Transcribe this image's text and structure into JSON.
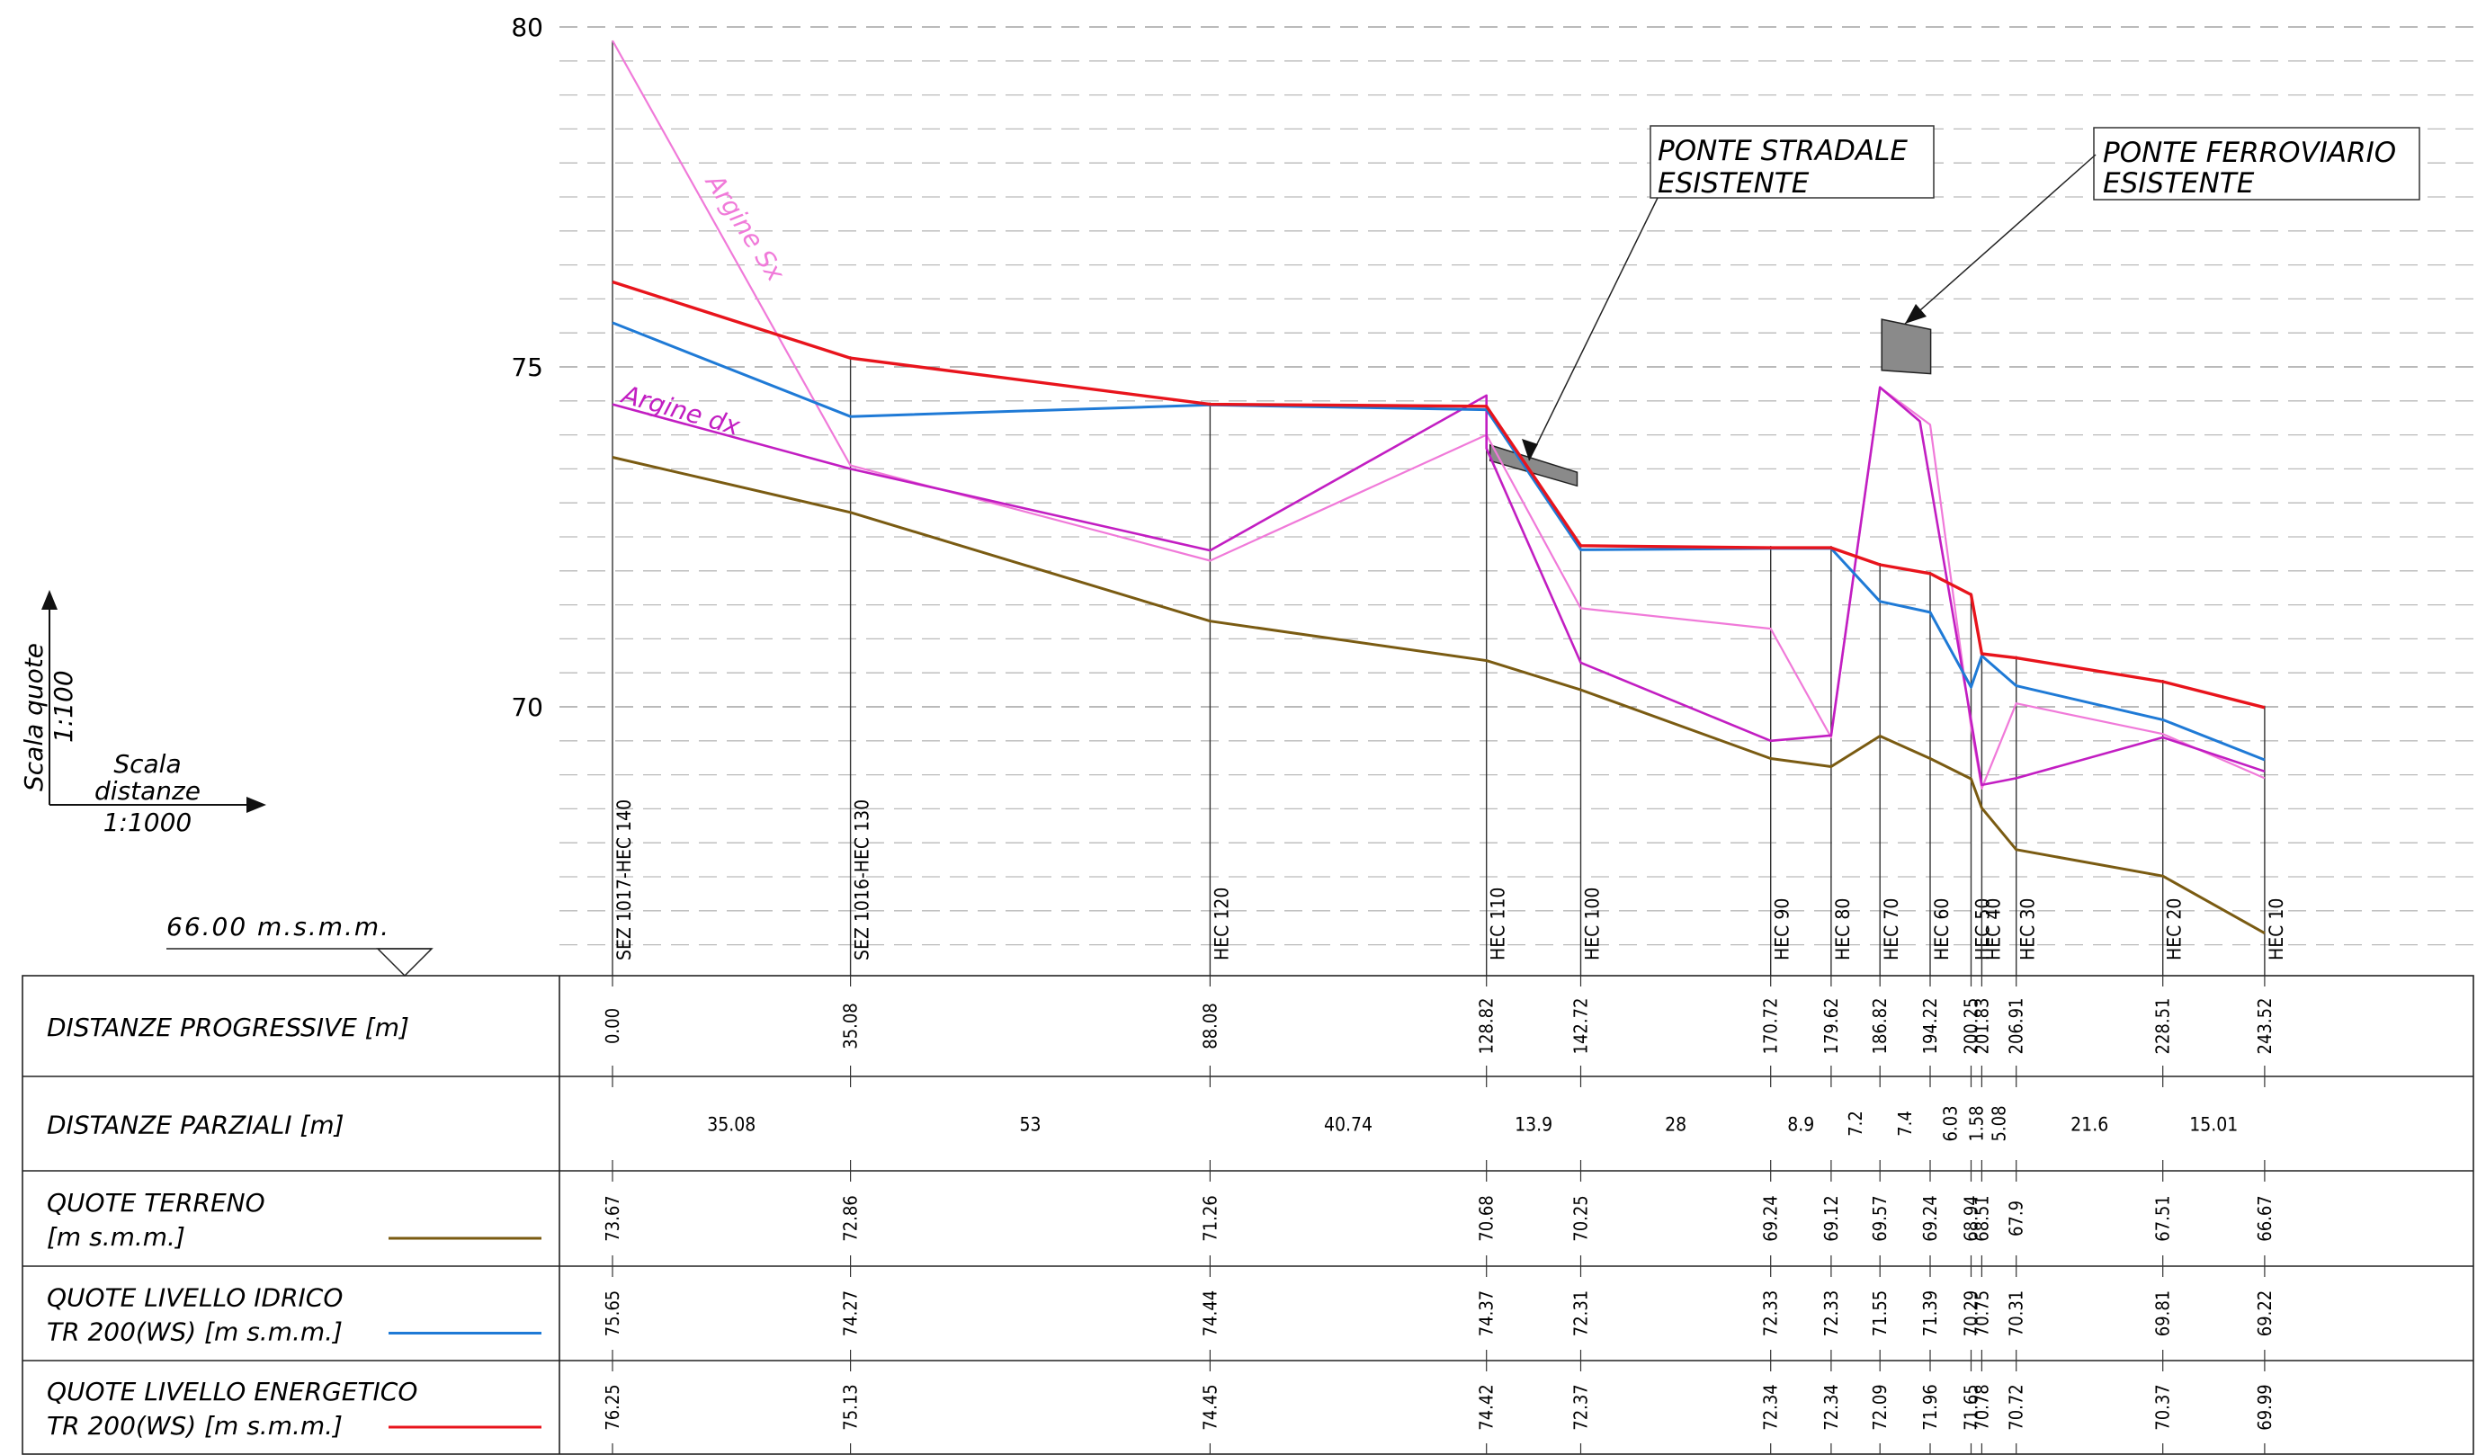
{
  "chart_data": {
    "type": "line",
    "title": "",
    "xlabel": "",
    "ylabel": "",
    "ylim": [
      66,
      80
    ],
    "yticks": [
      80,
      75,
      70
    ],
    "grid": true,
    "datum_label": "66.00 m.s.m.m.",
    "scale": {
      "vertical_label": "Scala quote",
      "vertical_value": "1:100",
      "horizontal_label_1": "Scala",
      "horizontal_label_2": "distanze",
      "horizontal_value": "1:1000"
    },
    "sections": [
      {
        "name": "SEZ 1017-HEC 140",
        "dist": 0.0,
        "dist_label": "0.00",
        "terrain": 73.67,
        "ws": 75.65,
        "eg": 76.25,
        "terrain_label": "73.67",
        "ws_label": "75.65",
        "eg_label": "76.25"
      },
      {
        "name": "SEZ 1016-HEC 130",
        "dist": 35.08,
        "dist_label": "35.08",
        "terrain": 72.86,
        "ws": 74.27,
        "eg": 75.13,
        "terrain_label": "72.86",
        "ws_label": "74.27",
        "eg_label": "75.13"
      },
      {
        "name": "HEC 120",
        "dist": 88.08,
        "dist_label": "88.08",
        "terrain": 71.26,
        "ws": 74.44,
        "eg": 74.45,
        "terrain_label": "71.26",
        "ws_label": "74.44",
        "eg_label": "74.45"
      },
      {
        "name": "HEC 110",
        "dist": 128.82,
        "dist_label": "128.82",
        "terrain": 70.68,
        "ws": 74.37,
        "eg": 74.42,
        "terrain_label": "70.68",
        "ws_label": "74.37",
        "eg_label": "74.42"
      },
      {
        "name": "HEC 100",
        "dist": 142.72,
        "dist_label": "142.72",
        "terrain": 70.25,
        "ws": 72.31,
        "eg": 72.37,
        "terrain_label": "70.25",
        "ws_label": "72.31",
        "eg_label": "72.37"
      },
      {
        "name": "HEC 90",
        "dist": 170.72,
        "dist_label": "170.72",
        "terrain": 69.24,
        "ws": 72.33,
        "eg": 72.34,
        "terrain_label": "69.24",
        "ws_label": "72.33",
        "eg_label": "72.34"
      },
      {
        "name": "HEC 80",
        "dist": 179.62,
        "dist_label": "179.62",
        "terrain": 69.12,
        "ws": 72.33,
        "eg": 72.34,
        "terrain_label": "69.12",
        "ws_label": "72.33",
        "eg_label": "72.34"
      },
      {
        "name": "HEC 70",
        "dist": 186.82,
        "dist_label": "186.82",
        "terrain": 69.57,
        "ws": 71.55,
        "eg": 72.09,
        "terrain_label": "69.57",
        "ws_label": "71.55",
        "eg_label": "72.09"
      },
      {
        "name": "HEC 60",
        "dist": 194.22,
        "dist_label": "194.22",
        "terrain": 69.24,
        "ws": 71.39,
        "eg": 71.96,
        "terrain_label": "69.24",
        "ws_label": "71.39",
        "eg_label": "71.96"
      },
      {
        "name": "HEC 50",
        "dist": 200.25,
        "dist_label": "200.25",
        "terrain": 68.94,
        "ws": 70.29,
        "eg": 71.65,
        "terrain_label": "68.94",
        "ws_label": "70.29",
        "eg_label": "71.65"
      },
      {
        "name": "HEC 40",
        "dist": 201.83,
        "dist_label": "201.83",
        "terrain": 68.51,
        "ws": 70.75,
        "eg": 70.78,
        "terrain_label": "68.51",
        "ws_label": "70.75",
        "eg_label": "70.78"
      },
      {
        "name": "HEC 30",
        "dist": 206.91,
        "dist_label": "206.91",
        "terrain": 67.9,
        "ws": 70.31,
        "eg": 70.72,
        "terrain_label": "67.9",
        "ws_label": "70.31",
        "eg_label": "70.72"
      },
      {
        "name": "HEC 20",
        "dist": 228.51,
        "dist_label": "228.51",
        "terrain": 67.51,
        "ws": 69.81,
        "eg": 70.37,
        "terrain_label": "67.51",
        "ws_label": "69.81",
        "eg_label": "70.37"
      },
      {
        "name": "HEC 10",
        "dist": 243.52,
        "dist_label": "243.52",
        "terrain": 66.67,
        "ws": 69.22,
        "eg": 69.99,
        "terrain_label": "66.67",
        "ws_label": "69.22",
        "eg_label": "69.99"
      }
    ],
    "partial_distances": [
      "35.08",
      "53",
      "40.74",
      "13.9",
      "28",
      "8.9",
      "7.2",
      "7.4",
      "6.03",
      "1.58",
      "5.08",
      "21.6",
      "15.01"
    ],
    "series": [
      {
        "key": "terrain",
        "color": "#7a5b12"
      },
      {
        "key": "ws",
        "color": "#1f7ad6"
      },
      {
        "key": "eg",
        "color": "#e8141c"
      },
      {
        "key": "argine_dx",
        "name": "Argine dx",
        "color": "#c21ec2",
        "points": [
          [
            0,
            74.45
          ],
          [
            35.08,
            73.5
          ],
          [
            88.08,
            72.3
          ],
          [
            128.82,
            74.58
          ],
          [
            128.82,
            73.8
          ],
          [
            142.72,
            70.65
          ],
          [
            170.72,
            69.5
          ],
          [
            179.62,
            69.58
          ],
          [
            186.82,
            74.7
          ],
          [
            192.7,
            74.2
          ],
          [
            200.25,
            69.8
          ],
          [
            201.83,
            68.85
          ],
          [
            206.91,
            68.95
          ],
          [
            228.51,
            69.55
          ],
          [
            243.52,
            69.05
          ]
        ]
      },
      {
        "key": "argine_sx",
        "name": "Argine Sx",
        "color": "#f07ad9",
        "points": [
          [
            0,
            79.8
          ],
          [
            35.08,
            73.55
          ],
          [
            88.08,
            72.15
          ],
          [
            128.82,
            74.0
          ],
          [
            142.72,
            71.45
          ],
          [
            170.72,
            71.15
          ],
          [
            179.62,
            69.55
          ],
          [
            186.82,
            74.7
          ],
          [
            194.22,
            74.15
          ],
          [
            200.25,
            69.7
          ],
          [
            201.83,
            68.8
          ],
          [
            206.91,
            70.05
          ],
          [
            228.51,
            69.6
          ],
          [
            243.52,
            68.95
          ]
        ]
      }
    ],
    "bridges": [
      {
        "label_1": "PONTE STRADALE",
        "label_2": "ESISTENTE"
      },
      {
        "label_1": "PONTE FERROVIARIO",
        "label_2": "ESISTENTE"
      }
    ],
    "table_rows": [
      {
        "key": "dist",
        "label_1": "DISTANZE PROGRESSIVE [m]",
        "label_2": ""
      },
      {
        "key": "partial",
        "label_1": "DISTANZE PARZIALI [m]",
        "label_2": ""
      },
      {
        "key": "terrain",
        "label_1": "QUOTE TERRENO",
        "label_2": "[m s.m.m.]"
      },
      {
        "key": "ws",
        "label_1": "QUOTE LIVELLO IDRICO",
        "label_2": "TR 200(WS) [m s.m.m.]"
      },
      {
        "key": "eg",
        "label_1": "QUOTE LIVELLO ENERGETICO",
        "label_2": "TR 200(WS) [m s.m.m.]"
      }
    ]
  }
}
